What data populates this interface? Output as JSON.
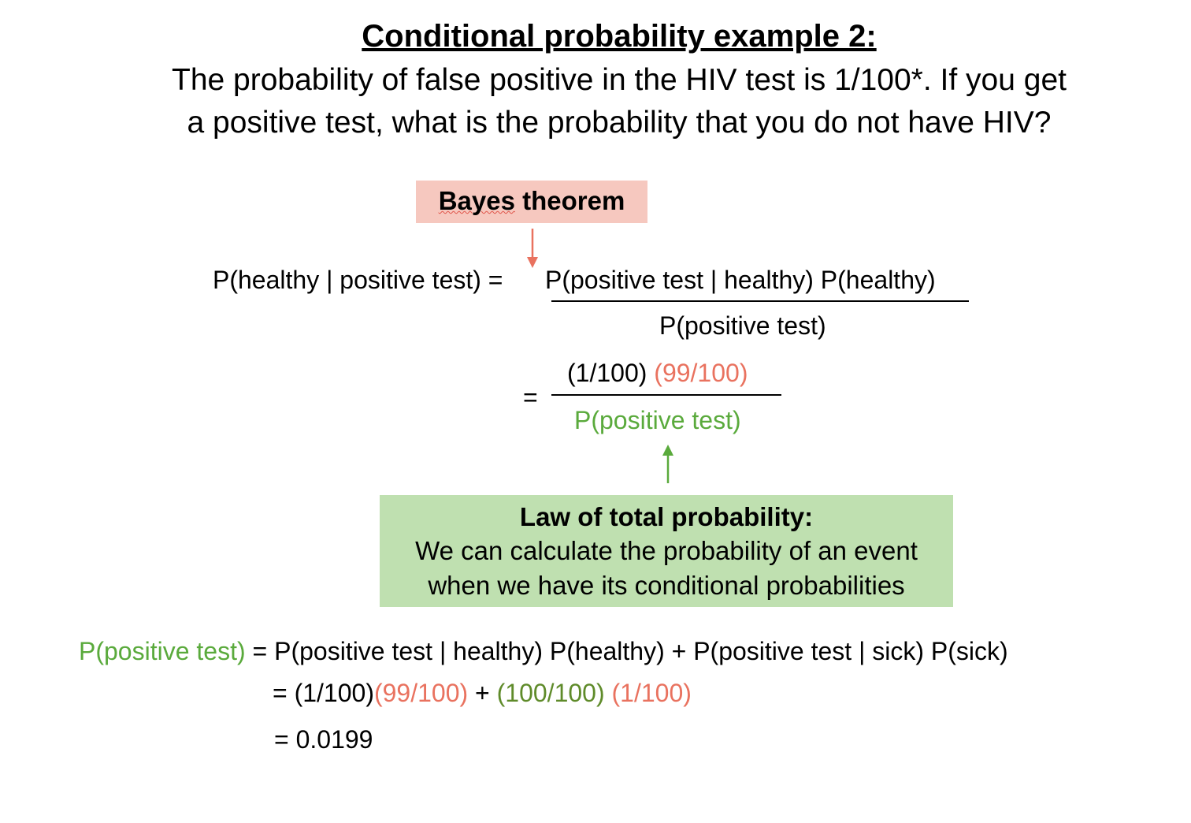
{
  "title": "Conditional probability example 2:",
  "question": {
    "line1": "The probability of false positive in the HIV test is 1/100*. If you get",
    "line2": "a positive test, what is the probability that you do not have HIV?"
  },
  "bayes_label": {
    "part1": "Bayes",
    "part2": " theorem"
  },
  "formula1": {
    "lhs": "P(healthy | positive test) = ",
    "numerator": "P(positive test | healthy) P(healthy)",
    "denominator": "P(positive test)"
  },
  "formula2": {
    "equals": "=",
    "num_part1": "(1/100) ",
    "num_part2": "(99/100)",
    "denominator": "P(positive test)"
  },
  "law": {
    "title": "Law of total probability:",
    "line1": "We can calculate the probability of an event",
    "line2": "when we have its conditional probabilities"
  },
  "total": {
    "lhs": "P(positive test)",
    "rhs1": " = P(positive test | healthy) P(healthy) + P(positive test | sick) P(sick)",
    "line2_a": "= (1/100)",
    "line2_b": "(99/100)",
    "line2_c": " + ",
    "line2_d": "(100/100)",
    "line2_e": " ",
    "line2_f": "(1/100)",
    "line3": "= 0.0199"
  },
  "colors": {
    "red": "#e9725f",
    "green": "#5aaa3c",
    "dark_green": "#5f8b2a",
    "bayes_box": "#f6c8bf",
    "law_box": "#bfe0b0"
  }
}
